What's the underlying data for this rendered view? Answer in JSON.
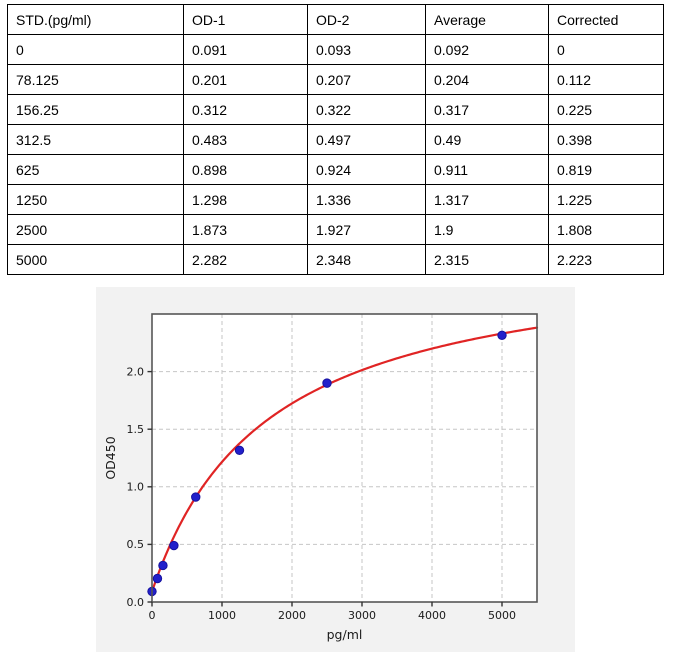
{
  "table": {
    "headers": [
      "STD.(pg/ml)",
      "OD-1",
      "OD-2",
      "Average",
      "Corrected"
    ],
    "rows": [
      [
        "0",
        "0.091",
        "0.093",
        "0.092",
        "0"
      ],
      [
        "78.125",
        "0.201",
        "0.207",
        "0.204",
        "0.112"
      ],
      [
        "156.25",
        "0.312",
        "0.322",
        "0.317",
        "0.225"
      ],
      [
        "312.5",
        "0.483",
        "0.497",
        "0.49",
        "0.398"
      ],
      [
        "625",
        "0.898",
        "0.924",
        "0.911",
        "0.819"
      ],
      [
        "1250",
        "1.298",
        "1.336",
        "1.317",
        "1.225"
      ],
      [
        "2500",
        "1.873",
        "1.927",
        "1.9",
        "1.808"
      ],
      [
        "5000",
        "2.282",
        "2.348",
        "2.315",
        "2.223"
      ]
    ]
  },
  "chart_data": {
    "type": "scatter",
    "title": "",
    "xlabel": "pg/ml",
    "ylabel": "OD450",
    "xlim": [
      0,
      5500
    ],
    "ylim": [
      0,
      2.5
    ],
    "xticks": [
      0,
      1000,
      2000,
      3000,
      4000,
      5000
    ],
    "yticks": [
      0.0,
      0.5,
      1.0,
      1.5,
      2.0
    ],
    "grid": true,
    "grid_style": "dashed",
    "legend_position": "none",
    "points": {
      "x": [
        0,
        78.125,
        156.25,
        312.5,
        625,
        1250,
        2500,
        5000
      ],
      "y": [
        0.092,
        0.204,
        0.317,
        0.49,
        0.911,
        1.317,
        1.9,
        2.315
      ]
    },
    "fit_curve": {
      "type": "saturation",
      "formula": "y = y0 + a*x/(k+x)",
      "y0": 0.09,
      "a": 2.976,
      "k": 1643,
      "x_start": 0,
      "x_end": 5500
    },
    "colors": {
      "point_fill": "#2220cb",
      "point_edge": "#17129e",
      "curve": "#e02424",
      "grid": "#c6c6c6",
      "figure_bg": "#f2f2f2",
      "plot_bg": "#ffffff",
      "spine": "#565656",
      "tick": "#333333",
      "text": "#1a1a1a"
    }
  }
}
